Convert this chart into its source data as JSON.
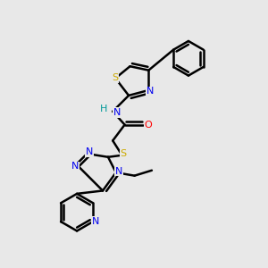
{
  "bg_color": "#e8e8e8",
  "atom_colors": {
    "N": "#0000ee",
    "S": "#ccaa00",
    "O": "#ff0000",
    "H": "#009999"
  },
  "bond_color": "#000000",
  "bond_width": 1.8,
  "figsize": [
    3.0,
    3.0
  ],
  "dpi": 100
}
